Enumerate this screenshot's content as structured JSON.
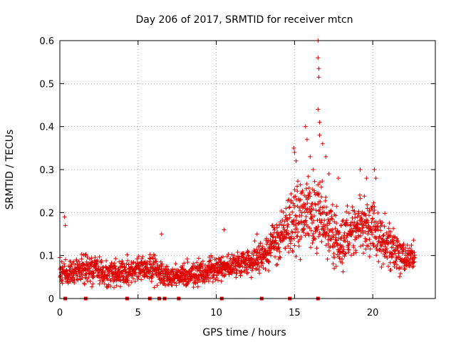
{
  "chart_data": {
    "type": "scatter",
    "title": "Day 206 of 2017, SRMTID for receiver mtcn",
    "xlabel": "GPS time / hours",
    "ylabel": "SRMTID / TECUs",
    "xlim": [
      0,
      24
    ],
    "ylim": [
      0,
      0.6
    ],
    "x_ticks": [
      0,
      5,
      10,
      15,
      20
    ],
    "x_tick_labels": [
      "0",
      "5",
      "10",
      "15",
      "20"
    ],
    "y_ticks": [
      0,
      0.1,
      0.2,
      0.3,
      0.4,
      0.5,
      0.6
    ],
    "y_tick_labels": [
      "0",
      "0.1",
      "0.2",
      "0.3",
      "0.4",
      "0.5",
      "0.6"
    ],
    "grid": true,
    "marker": "plus",
    "color": "#e00000",
    "envelope": [
      {
        "x": 0.0,
        "mean": 0.06,
        "spread": 0.025
      },
      {
        "x": 1.0,
        "mean": 0.065,
        "spread": 0.025
      },
      {
        "x": 2.0,
        "mean": 0.07,
        "spread": 0.03
      },
      {
        "x": 3.0,
        "mean": 0.06,
        "spread": 0.025
      },
      {
        "x": 4.0,
        "mean": 0.06,
        "spread": 0.03
      },
      {
        "x": 5.0,
        "mean": 0.07,
        "spread": 0.025
      },
      {
        "x": 6.0,
        "mean": 0.07,
        "spread": 0.03
      },
      {
        "x": 7.0,
        "mean": 0.05,
        "spread": 0.02
      },
      {
        "x": 8.0,
        "mean": 0.055,
        "spread": 0.025
      },
      {
        "x": 9.0,
        "mean": 0.06,
        "spread": 0.025
      },
      {
        "x": 10.0,
        "mean": 0.07,
        "spread": 0.025
      },
      {
        "x": 11.0,
        "mean": 0.075,
        "spread": 0.025
      },
      {
        "x": 12.0,
        "mean": 0.085,
        "spread": 0.03
      },
      {
        "x": 13.0,
        "mean": 0.1,
        "spread": 0.035
      },
      {
        "x": 14.0,
        "mean": 0.14,
        "spread": 0.05
      },
      {
        "x": 15.0,
        "mean": 0.19,
        "spread": 0.07
      },
      {
        "x": 16.0,
        "mean": 0.2,
        "spread": 0.08
      },
      {
        "x": 17.0,
        "mean": 0.17,
        "spread": 0.07
      },
      {
        "x": 18.0,
        "mean": 0.12,
        "spread": 0.06
      },
      {
        "x": 19.0,
        "mean": 0.17,
        "spread": 0.06
      },
      {
        "x": 20.0,
        "mean": 0.17,
        "spread": 0.06
      },
      {
        "x": 21.0,
        "mean": 0.12,
        "spread": 0.05
      },
      {
        "x": 22.0,
        "mean": 0.09,
        "spread": 0.03
      },
      {
        "x": 22.7,
        "mean": 0.09,
        "spread": 0.03
      }
    ],
    "peaks": [
      {
        "x": 0.3,
        "y": 0.19
      },
      {
        "x": 0.35,
        "y": 0.17
      },
      {
        "x": 14.95,
        "y": 0.35
      },
      {
        "x": 15.0,
        "y": 0.34
      },
      {
        "x": 15.1,
        "y": 0.32
      },
      {
        "x": 15.7,
        "y": 0.4
      },
      {
        "x": 15.8,
        "y": 0.37
      },
      {
        "x": 16.0,
        "y": 0.33
      },
      {
        "x": 16.2,
        "y": 0.3
      },
      {
        "x": 16.5,
        "y": 0.6
      },
      {
        "x": 16.5,
        "y": 0.56
      },
      {
        "x": 16.55,
        "y": 0.535
      },
      {
        "x": 16.55,
        "y": 0.515
      },
      {
        "x": 16.5,
        "y": 0.44
      },
      {
        "x": 16.6,
        "y": 0.41
      },
      {
        "x": 16.6,
        "y": 0.38
      },
      {
        "x": 16.8,
        "y": 0.36
      },
      {
        "x": 17.0,
        "y": 0.33
      },
      {
        "x": 17.2,
        "y": 0.29
      },
      {
        "x": 17.8,
        "y": 0.28
      },
      {
        "x": 19.2,
        "y": 0.3
      },
      {
        "x": 19.6,
        "y": 0.28
      },
      {
        "x": 20.1,
        "y": 0.3
      },
      {
        "x": 20.2,
        "y": 0.28
      },
      {
        "x": 10.5,
        "y": 0.16
      },
      {
        "x": 12.6,
        "y": 0.15
      },
      {
        "x": 13.6,
        "y": 0.17
      },
      {
        "x": 6.5,
        "y": 0.15
      }
    ],
    "baseline_markers_x": [
      0.35,
      1.65,
      4.3,
      5.75,
      6.35,
      6.7,
      7.6,
      10.35,
      12.9,
      14.7,
      16.5
    ]
  }
}
